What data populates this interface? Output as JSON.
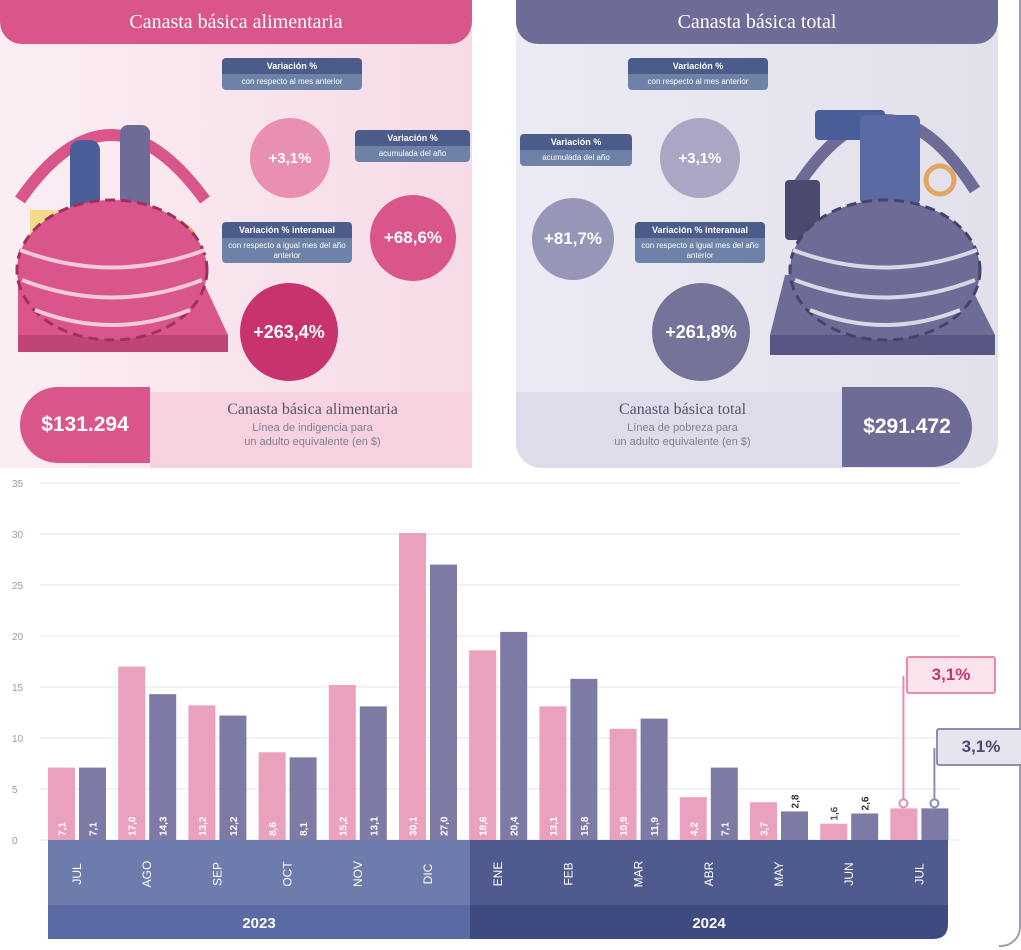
{
  "header": {
    "left_title": "Canasta básica alimentaria",
    "right_title": "Canasta básica total"
  },
  "cba": {
    "mensual_label": "Variación %",
    "mensual_sub": "con respecto al mes anterior",
    "mensual_value": "+3,1%",
    "acumulada_label": "Variación %",
    "acumulada_sub": "acumulada del año",
    "acumulada_value": "+68,6%",
    "interanual_label": "Variación % interanual",
    "interanual_sub": "con respecto a igual mes del año anterior",
    "interanual_value": "+263,4%",
    "price": "$131.294",
    "price_title": "Canasta básica alimentaria",
    "price_sub1": "Línea de indigencia para",
    "price_sub2": "un adulto equivalente (en $)"
  },
  "cbt": {
    "mensual_label": "Variación %",
    "mensual_sub": "con respecto al mes anterior",
    "mensual_value": "+3,1%",
    "acumulada_label": "Variación %",
    "acumulada_sub": "acumulada del año",
    "acumulada_value": "+81,7%",
    "interanual_label": "Variación % interanual",
    "interanual_sub": "con respecto a igual mes del año anterior",
    "interanual_value": "+261,8%",
    "price": "$291.472",
    "price_title": "Canasta básica total",
    "price_sub1": "Línea de pobreza para",
    "price_sub2": "un adulto equivalente (en $)"
  },
  "colors": {
    "pink": "#d9558a",
    "pink_bar": "#eaa1be",
    "purple": "#6e6c97",
    "purple_bar": "#7e7aa6",
    "axis_band": "#6d7cac",
    "year_2023": "#5a6aa3",
    "year_2024": "#3f4a80"
  },
  "chart_data": {
    "type": "bar",
    "categories": [
      "JUL",
      "AGO",
      "SEP",
      "OCT",
      "NOV",
      "DIC",
      "ENE",
      "FEB",
      "MAR",
      "ABR",
      "MAY",
      "JUN",
      "JUL"
    ],
    "years": [
      {
        "label": "2023"
      },
      {
        "label": "2024"
      }
    ],
    "series": [
      {
        "values": [
          7.1,
          17.0,
          13.2,
          8.6,
          15.2,
          30.1,
          18.6,
          13.1,
          10.9,
          4.2,
          3.7,
          1.6,
          3.1
        ],
        "labels": [
          "7,1",
          "17,0",
          "13,2",
          "8,6",
          "15,2",
          "30,1",
          "18,6",
          "13,1",
          "10,9",
          "4,2",
          "3,7",
          "1,6",
          ""
        ]
      },
      {
        "values": [
          7.1,
          14.3,
          12.2,
          8.1,
          13.1,
          27.0,
          20.4,
          15.8,
          11.9,
          7.1,
          2.8,
          2.6,
          3.1
        ],
        "labels": [
          "7,1",
          "14,3",
          "12,2",
          "8,1",
          "13,1",
          "27,0",
          "20,4",
          "15,8",
          "11,9",
          "7,1",
          "2,8",
          "2,6",
          ""
        ]
      }
    ],
    "ylim": [
      0,
      35
    ],
    "yticks": [
      0,
      5,
      10,
      15,
      20,
      25,
      30,
      35
    ],
    "callouts": [
      "3,1%",
      "3,1%"
    ],
    "grid": true
  }
}
